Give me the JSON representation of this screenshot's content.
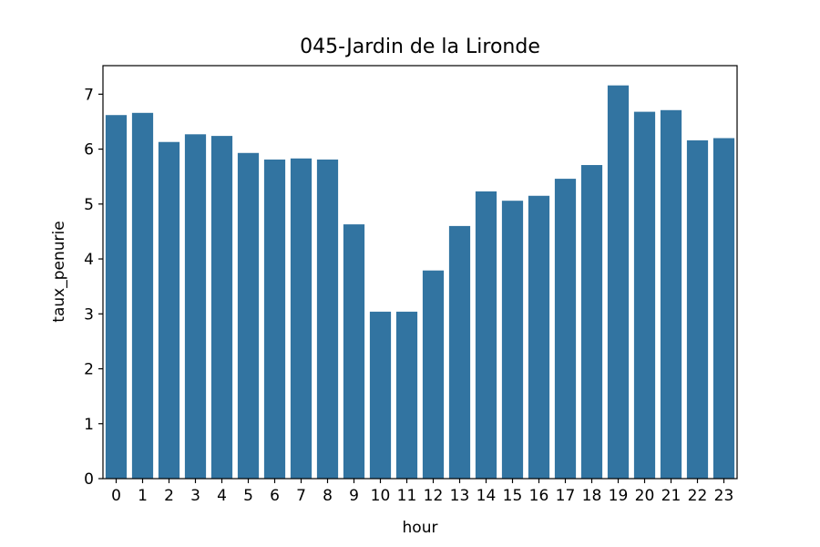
{
  "chart_data": {
    "type": "bar",
    "title": "045-Jardin de la Lironde",
    "xlabel": "hour",
    "ylabel": "taux_penurie",
    "categories": [
      "0",
      "1",
      "2",
      "3",
      "4",
      "5",
      "6",
      "7",
      "8",
      "9",
      "10",
      "11",
      "12",
      "13",
      "14",
      "15",
      "16",
      "17",
      "18",
      "19",
      "20",
      "21",
      "22",
      "23"
    ],
    "values": [
      6.62,
      6.66,
      6.13,
      6.27,
      6.24,
      5.93,
      5.81,
      5.83,
      5.81,
      4.63,
      3.04,
      3.04,
      3.79,
      4.6,
      5.23,
      5.06,
      5.15,
      5.46,
      5.71,
      7.16,
      6.68,
      6.71,
      6.16,
      6.2
    ],
    "ylim": [
      0,
      7.52
    ],
    "yticks": [
      "0",
      "1",
      "2",
      "3",
      "4",
      "5",
      "6",
      "7"
    ],
    "bar_color": "#3274a1",
    "grid": false,
    "legend": "none"
  }
}
